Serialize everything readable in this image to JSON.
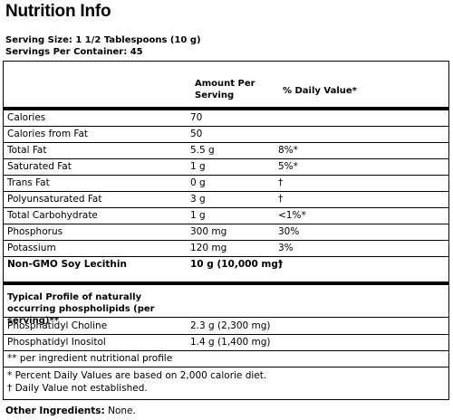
{
  "title": "Nutrition Info",
  "serving_size": "Serving Size: 1 1/2 Tablespoons (10 g)",
  "servings_per_container": "Servings Per Container: 45",
  "table": {
    "col_amount": "Amount Per Serving",
    "col_dv": "% Daily Value*",
    "rows": [
      {
        "name": "Calories",
        "amount": "70",
        "dv": ""
      },
      {
        "name": "Calories from Fat",
        "amount": "50",
        "dv": ""
      },
      {
        "name": "Total Fat",
        "amount": "5.5 g",
        "dv": "8%*"
      },
      {
        "name": "Saturated Fat",
        "amount": "1 g",
        "dv": "5%*"
      },
      {
        "name": "Trans Fat",
        "amount": "0 g",
        "dv": "†"
      },
      {
        "name": "Polyunsaturated Fat",
        "amount": "3 g",
        "dv": "†"
      },
      {
        "name": "Total Carbohydrate",
        "amount": "1 g",
        "dv": "<1%*"
      },
      {
        "name": "Phosphorus",
        "amount": "300 mg",
        "dv": "30%"
      },
      {
        "name": "Potassium",
        "amount": "120 mg",
        "dv": "3%"
      },
      {
        "name": "Non-GMO Soy Lecithin",
        "amount": "10 g (10,000 mg)",
        "dv": "†",
        "bold": true
      }
    ]
  },
  "profile": {
    "heading": "Typical Profile of naturally occurring phospholipids (per serving)**",
    "rows": [
      {
        "name": "Phosphatidyl Choline",
        "amount": "2.3 g (2,300 mg)"
      },
      {
        "name": "Phosphatidyl Inositol",
        "amount": "1.4 g (1,400 mg)"
      }
    ],
    "note": "** per ingredient nutritional profile"
  },
  "footnotes": [
    "* Percent Daily Values are based on 2,000 calorie diet.",
    "† Daily Value not established."
  ],
  "other_ingredients": {
    "label": "Other Ingredients:",
    "value": "None."
  }
}
